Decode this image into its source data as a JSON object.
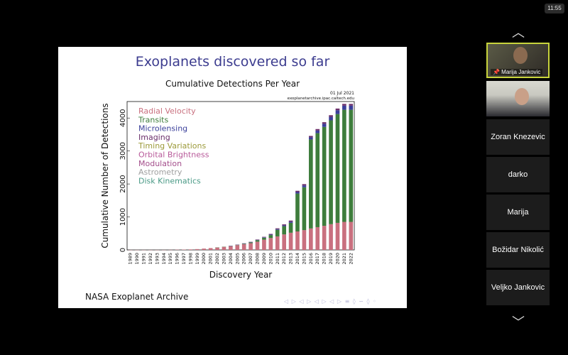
{
  "clock": "11:55",
  "slide": {
    "title": "Exoplanets discovered so far",
    "chart_title": "Cumulative Detections Per Year",
    "date": "01 Jul 2021",
    "source": "exoplanetarchive.ipac.caltech.edu",
    "footer": "NASA Exoplanet Archive",
    "nav_symbols": "◁ ▷ ◁ ▷ ◁ ▷ ◁ ▷ ≡ ◊ ∽ ◊ ◦"
  },
  "chart_data": {
    "type": "bar",
    "stacked": true,
    "title": "Cumulative Detections Per Year",
    "xlabel": "Discovery Year",
    "ylabel": "Cumulative Number of Detections",
    "ylim": [
      0,
      4500
    ],
    "yticks": [
      0,
      1000,
      2000,
      3000,
      4000
    ],
    "categories": [
      "1989",
      "1990",
      "1991",
      "1992",
      "1993",
      "1994",
      "1995",
      "1996",
      "1997",
      "1998",
      "1999",
      "2000",
      "2001",
      "2002",
      "2003",
      "2004",
      "2005",
      "2006",
      "2007",
      "2008",
      "2009",
      "2010",
      "2011",
      "2012",
      "2013",
      "2014",
      "2015",
      "2016",
      "2017",
      "2018",
      "2019",
      "2020",
      "2021",
      "2022"
    ],
    "series": [
      {
        "name": "Radial Velocity",
        "color": "#c9707f",
        "values": [
          1,
          1,
          1,
          1,
          1,
          1,
          3,
          8,
          10,
          15,
          25,
          40,
          55,
          75,
          95,
          115,
          145,
          175,
          205,
          250,
          310,
          360,
          410,
          470,
          520,
          560,
          600,
          650,
          690,
          730,
          780,
          820,
          850,
          850
        ]
      },
      {
        "name": "Transits",
        "color": "#3e7d3c",
        "values": [
          0,
          0,
          0,
          0,
          0,
          0,
          0,
          0,
          0,
          0,
          0,
          0,
          0,
          1,
          3,
          5,
          10,
          15,
          25,
          45,
          60,
          90,
          200,
          250,
          300,
          1150,
          1300,
          2700,
          2850,
          3000,
          3150,
          3300,
          3400,
          3400
        ]
      },
      {
        "name": "Microlensing",
        "color": "#3a3f9a",
        "values": [
          0,
          0,
          0,
          0,
          0,
          0,
          0,
          0,
          0,
          0,
          0,
          0,
          0,
          0,
          0,
          1,
          3,
          5,
          7,
          10,
          12,
          15,
          20,
          25,
          35,
          45,
          55,
          65,
          80,
          95,
          105,
          115,
          125,
          125
        ]
      },
      {
        "name": "Imaging",
        "color": "#6b2f6b",
        "values": [
          0,
          0,
          0,
          0,
          0,
          0,
          0,
          0,
          0,
          0,
          0,
          0,
          0,
          0,
          0,
          1,
          3,
          5,
          8,
          12,
          15,
          20,
          25,
          30,
          35,
          38,
          40,
          42,
          45,
          48,
          50,
          52,
          53,
          53
        ]
      },
      {
        "name": "Timing Variations",
        "color": "#9c9a3a",
        "values": [
          0,
          0,
          0,
          0,
          0,
          0,
          0,
          0,
          0,
          0,
          0,
          0,
          0,
          0,
          0,
          0,
          0,
          0,
          0,
          0,
          0,
          0,
          0,
          0,
          0,
          0,
          0,
          0,
          0,
          0,
          0,
          0,
          0,
          0
        ]
      },
      {
        "name": "Orbital Brightness",
        "color": "#b85a9a",
        "values": [
          0,
          0,
          0,
          0,
          0,
          0,
          0,
          0,
          0,
          0,
          0,
          0,
          0,
          0,
          0,
          0,
          0,
          0,
          0,
          0,
          0,
          0,
          0,
          0,
          0,
          0,
          0,
          0,
          0,
          0,
          0,
          0,
          0,
          0
        ]
      },
      {
        "name": "Modulation",
        "color": "#a44f8c",
        "values": [
          0,
          0,
          0,
          0,
          0,
          0,
          0,
          0,
          0,
          0,
          0,
          0,
          0,
          0,
          0,
          0,
          0,
          0,
          0,
          0,
          0,
          0,
          0,
          0,
          0,
          0,
          0,
          0,
          0,
          0,
          0,
          0,
          0,
          0
        ]
      },
      {
        "name": "Astrometry",
        "color": "#a0a0a0",
        "values": [
          0,
          0,
          0,
          0,
          0,
          0,
          0,
          0,
          0,
          0,
          0,
          0,
          0,
          0,
          0,
          0,
          0,
          0,
          0,
          0,
          0,
          0,
          0,
          0,
          0,
          0,
          0,
          0,
          0,
          0,
          0,
          0,
          0,
          0
        ]
      },
      {
        "name": "Disk Kinematics",
        "color": "#4a9a86",
        "values": [
          0,
          0,
          0,
          0,
          0,
          0,
          0,
          0,
          0,
          0,
          0,
          0,
          0,
          0,
          0,
          0,
          0,
          0,
          0,
          0,
          0,
          0,
          0,
          0,
          0,
          0,
          0,
          0,
          0,
          0,
          0,
          0,
          0,
          0
        ]
      }
    ],
    "legend_position": "top-left",
    "grid": false
  },
  "participants": [
    {
      "name": "Marija Jankovic",
      "video": true,
      "active": true
    },
    {
      "name": "",
      "video": true,
      "active": false
    },
    {
      "name": "Zoran Knezevic",
      "video": false
    },
    {
      "name": "darko",
      "video": false
    },
    {
      "name": "Marija",
      "video": false
    },
    {
      "name": "Božidar Nikolić",
      "video": false
    },
    {
      "name": "Veljko Jankovic",
      "video": false
    }
  ],
  "icons": {
    "scroll_up": "chevron-up-icon",
    "scroll_down": "chevron-down-icon",
    "pin": "pin-icon"
  }
}
